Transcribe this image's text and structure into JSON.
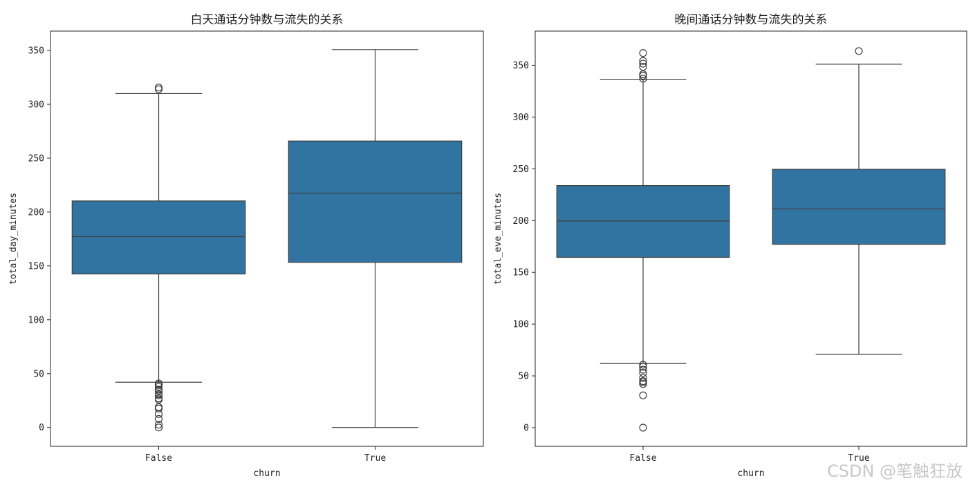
{
  "colors": {
    "box_fill": "#3274a1",
    "line": "#3d3d3d"
  },
  "watermark": "CSDN @笔触狂放",
  "chart_data": [
    {
      "type": "box",
      "title": "白天通话分钟数与流失的关系",
      "xlabel": "churn",
      "ylabel": "total_day_minutes",
      "ylim": [
        -17.5,
        368
      ],
      "yticks": [
        0,
        50,
        100,
        150,
        200,
        250,
        300,
        350
      ],
      "categories": [
        "False",
        "True"
      ],
      "boxes": [
        {
          "category": "False",
          "whisker_low": 42,
          "q1": 142.5,
          "median": 177.2,
          "q3": 210.3,
          "whisker_high": 310,
          "outliers": [
            0,
            2.6,
            7.9,
            12.5,
            17.6,
            18.9,
            25.9,
            27,
            29.9,
            30.9,
            34,
            35.1,
            37.8,
            39.5,
            40.9,
            314,
            315.6
          ]
        },
        {
          "category": "True",
          "whisker_low": 0,
          "q1": 153.3,
          "median": 217.6,
          "q3": 265.9,
          "whisker_high": 350.8,
          "outliers": []
        }
      ]
    },
    {
      "type": "box",
      "title": "晚间通话分钟数与流失的关系",
      "xlabel": "churn",
      "ylabel": "total_eve_minutes",
      "ylim": [
        -18,
        383
      ],
      "yticks": [
        0,
        50,
        100,
        150,
        200,
        250,
        300,
        350
      ],
      "categories": [
        "False",
        "True"
      ],
      "boxes": [
        {
          "category": "False",
          "whisker_low": 62,
          "q1": 164.5,
          "median": 199.6,
          "q3": 233.8,
          "whisker_high": 336,
          "outliers": [
            0,
            31.2,
            42.2,
            43.9,
            45,
            48.1,
            52.9,
            56,
            58.9,
            60.8,
            337.1,
            339.9,
            341.3,
            348.5,
            351.6,
            354.2,
            361.8
          ]
        },
        {
          "category": "True",
          "whisker_low": 70.9,
          "q1": 177.1,
          "median": 211.3,
          "q3": 249.5,
          "whisker_high": 351,
          "outliers": [
            363.7
          ]
        }
      ]
    }
  ]
}
